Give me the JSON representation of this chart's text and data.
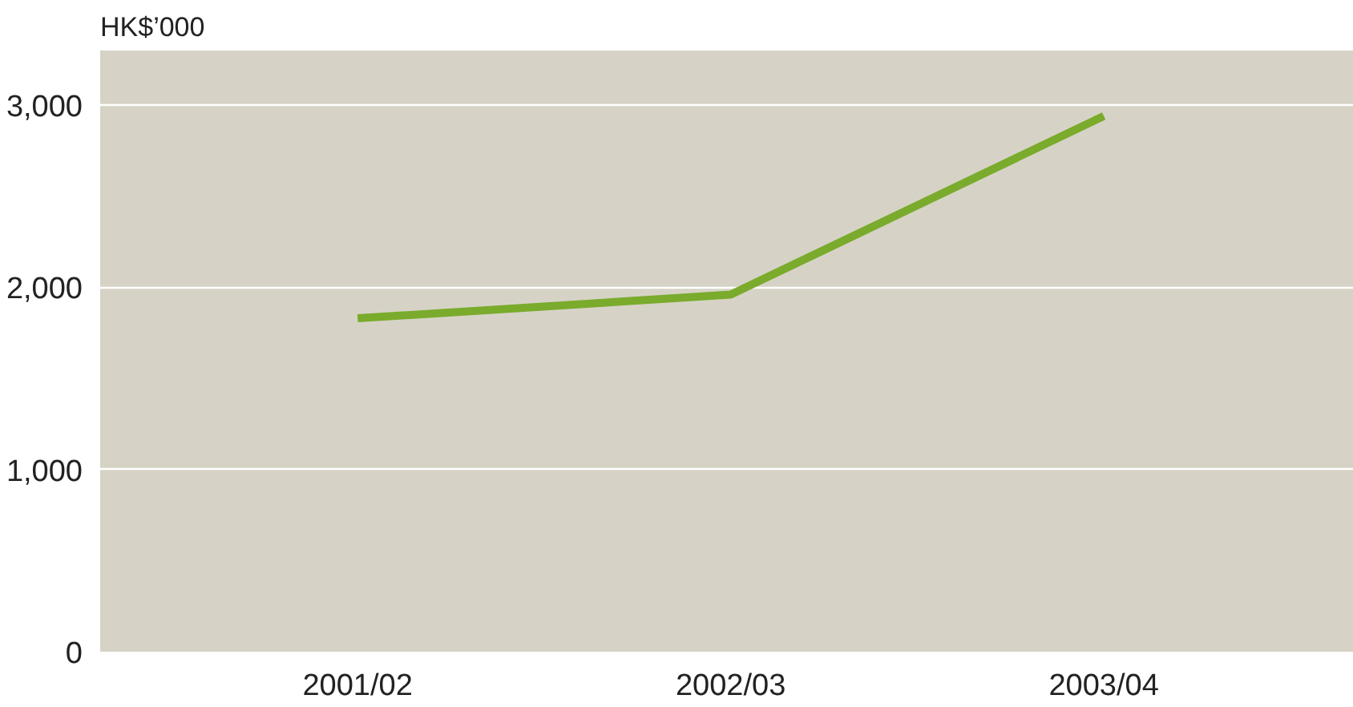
{
  "chart_data": {
    "type": "line",
    "ylabel": "HK$’000",
    "categories": [
      "2001/02",
      "2002/03",
      "2003/04"
    ],
    "series": [
      {
        "color": "#7aab2c",
        "values": [
          1830,
          1960,
          2940
        ]
      }
    ],
    "ylim": [
      0,
      3300
    ],
    "yticks": [
      {
        "value": 0,
        "label": "0"
      },
      {
        "value": 1000,
        "label": "1,000"
      },
      {
        "value": 2000,
        "label": "2,000"
      },
      {
        "value": 3000,
        "label": "3,000"
      }
    ],
    "grid": "y",
    "line_style": "solid",
    "marker": "none"
  }
}
